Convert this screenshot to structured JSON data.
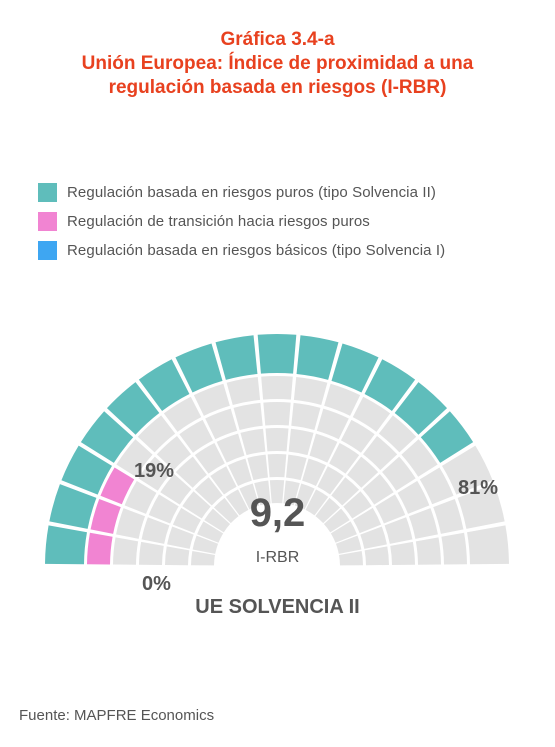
{
  "header": {
    "title_line1": "Gráfica 3.4-a",
    "title_line2": "Unión Europea: Índice de proximidad a una",
    "title_line3": "regulación basada en riesgos (I-RBR)"
  },
  "legend": [
    {
      "label": "Regulación basada en riesgos puros (tipo Solvencia II)",
      "color": "#5fbdbb"
    },
    {
      "label": "Regulación de transición hacia riesgos puros",
      "color": "#f184d2"
    },
    {
      "label": "Regulación basada en riesgos básicos (tipo Solvencia I)",
      "color": "#3ea6f2"
    }
  ],
  "chart_data": {
    "type": "gauge",
    "value": 9.2,
    "value_label": "9,2",
    "value_caption": "I-RBR",
    "subtitle": "UE SOLVENCIA II",
    "scale_labels": {
      "start": "0%",
      "transition": "19%",
      "end": "81%"
    },
    "bands": [
      {
        "name": "Regulación de transición hacia riesgos puros",
        "from": 0.0,
        "to": 0.19,
        "color": "#f184d2"
      },
      {
        "name": "Regulación basada en riesgos puros (tipo Solvencia II)",
        "from": 0.19,
        "to": 0.81,
        "color": "#5fbdbb"
      }
    ],
    "inactive_color": "#e3e3e3",
    "segments": 17,
    "inner_rings": 5
  },
  "footer": {
    "source": "Fuente: MAPFRE Economics"
  }
}
